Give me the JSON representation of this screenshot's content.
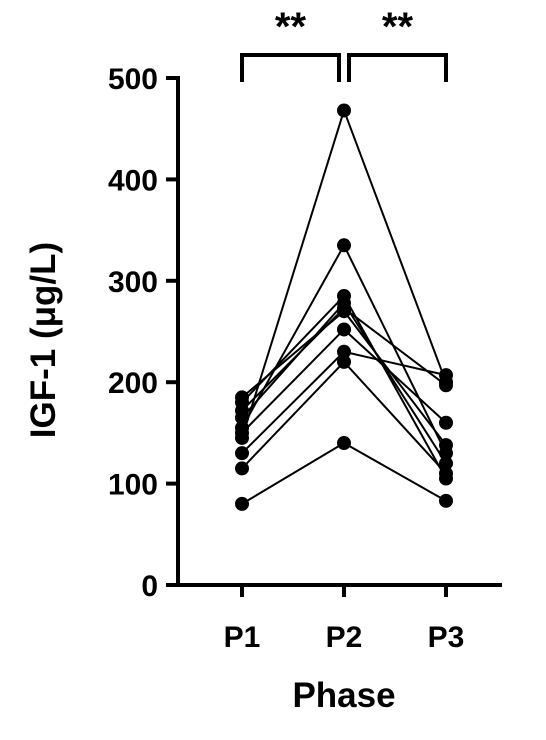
{
  "chart_data": {
    "type": "line",
    "xlabel": "Phase",
    "ylabel": "IGF-1 (μg/L)",
    "categories": [
      "P1",
      "P2",
      "P3"
    ],
    "ylim": [
      0,
      500
    ],
    "yticks": [
      0,
      100,
      200,
      300,
      400,
      500
    ],
    "grid": false,
    "legend": "none",
    "series": [
      {
        "values": [
          145,
          468,
          200
        ]
      },
      {
        "values": [
          155,
          335,
          130
        ]
      },
      {
        "values": [
          180,
          285,
          105
        ]
      },
      {
        "values": [
          165,
          278,
          120
        ]
      },
      {
        "values": [
          172,
          273,
          197
        ]
      },
      {
        "values": [
          185,
          270,
          138
        ]
      },
      {
        "values": [
          150,
          252,
          160
        ]
      },
      {
        "values": [
          130,
          230,
          207
        ]
      },
      {
        "values": [
          115,
          220,
          110
        ]
      },
      {
        "values": [
          80,
          140,
          83
        ]
      }
    ],
    "annotations": [
      {
        "from": "P1",
        "to": "P2",
        "text": "**"
      },
      {
        "from": "P2",
        "to": "P3",
        "text": "**"
      }
    ]
  }
}
